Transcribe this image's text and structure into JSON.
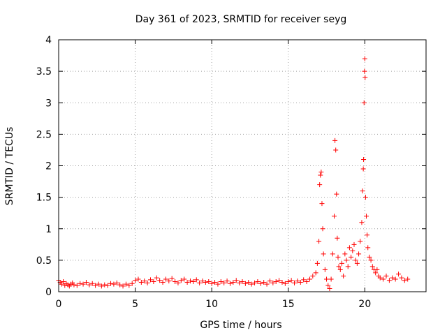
{
  "chart_data": {
    "type": "scatter",
    "title": "Day 361 of 2023, SRMTID for receiver seyg",
    "xlabel": "GPS time / hours",
    "ylabel": "SRMTID / TECUs",
    "xlim": [
      0,
      24
    ],
    "ylim": [
      0,
      4
    ],
    "xticks": [
      0,
      5,
      10,
      15,
      20
    ],
    "xtick_labels": [
      "0",
      "5",
      "10",
      "15",
      "20"
    ],
    "yticks": [
      0,
      0.5,
      1,
      1.5,
      2,
      2.5,
      3,
      3.5,
      4
    ],
    "ytick_labels": [
      "0",
      "0.5",
      "1",
      "1.5",
      "2",
      "2.5",
      "3",
      "3.5",
      "4"
    ],
    "grid": true,
    "legend": "none",
    "marker": "+",
    "color": "#ff0000",
    "series": [
      {
        "name": "SRMTID",
        "x": [
          0.0,
          0.1,
          0.2,
          0.3,
          0.4,
          0.5,
          0.6,
          0.7,
          0.8,
          0.9,
          1.0,
          1.2,
          1.4,
          1.6,
          1.8,
          2.0,
          2.2,
          2.4,
          2.6,
          2.8,
          3.0,
          3.2,
          3.4,
          3.6,
          3.8,
          4.0,
          4.2,
          4.4,
          4.6,
          4.8,
          5.0,
          5.2,
          5.4,
          5.6,
          5.8,
          6.0,
          6.2,
          6.4,
          6.6,
          6.8,
          7.0,
          7.2,
          7.4,
          7.6,
          7.8,
          8.0,
          8.2,
          8.4,
          8.6,
          8.8,
          9.0,
          9.2,
          9.4,
          9.6,
          9.8,
          10.0,
          10.2,
          10.4,
          10.6,
          10.8,
          11.0,
          11.2,
          11.4,
          11.6,
          11.8,
          12.0,
          12.2,
          12.4,
          12.6,
          12.8,
          13.0,
          13.2,
          13.4,
          13.6,
          13.8,
          14.0,
          14.2,
          14.4,
          14.6,
          14.8,
          15.0,
          15.2,
          15.4,
          15.6,
          15.8,
          16.0,
          16.2,
          16.4,
          16.6,
          16.8,
          16.9,
          17.0,
          17.05,
          17.1,
          17.15,
          17.2,
          17.25,
          17.3,
          17.4,
          17.5,
          17.6,
          17.7,
          17.8,
          17.9,
          18.0,
          18.05,
          18.1,
          18.15,
          18.2,
          18.25,
          18.3,
          18.4,
          18.5,
          18.6,
          18.7,
          18.8,
          18.9,
          19.0,
          19.1,
          19.2,
          19.3,
          19.4,
          19.5,
          19.6,
          19.7,
          19.8,
          19.85,
          19.9,
          19.92,
          19.95,
          19.98,
          20.0,
          20.02,
          20.05,
          20.1,
          20.15,
          20.2,
          20.3,
          20.4,
          20.5,
          20.6,
          20.7,
          20.8,
          20.9,
          21.0,
          21.2,
          21.4,
          21.6,
          21.8,
          22.0,
          22.2,
          22.4,
          22.6,
          22.8
        ],
        "y": [
          0.18,
          0.15,
          0.12,
          0.16,
          0.1,
          0.13,
          0.11,
          0.09,
          0.12,
          0.14,
          0.11,
          0.1,
          0.13,
          0.12,
          0.15,
          0.11,
          0.13,
          0.1,
          0.12,
          0.09,
          0.11,
          0.1,
          0.13,
          0.12,
          0.14,
          0.11,
          0.09,
          0.12,
          0.1,
          0.13,
          0.18,
          0.2,
          0.15,
          0.17,
          0.14,
          0.19,
          0.16,
          0.22,
          0.18,
          0.15,
          0.2,
          0.17,
          0.21,
          0.16,
          0.14,
          0.18,
          0.2,
          0.15,
          0.17,
          0.16,
          0.19,
          0.14,
          0.17,
          0.15,
          0.16,
          0.13,
          0.15,
          0.12,
          0.16,
          0.14,
          0.17,
          0.13,
          0.15,
          0.18,
          0.14,
          0.16,
          0.13,
          0.15,
          0.12,
          0.14,
          0.16,
          0.13,
          0.15,
          0.12,
          0.17,
          0.14,
          0.16,
          0.18,
          0.15,
          0.13,
          0.16,
          0.18,
          0.14,
          0.17,
          0.15,
          0.19,
          0.16,
          0.2,
          0.25,
          0.3,
          0.45,
          0.8,
          1.7,
          1.85,
          1.9,
          1.4,
          1.0,
          0.6,
          0.35,
          0.2,
          0.1,
          0.05,
          0.2,
          0.6,
          1.2,
          2.4,
          2.25,
          1.55,
          0.85,
          0.55,
          0.4,
          0.35,
          0.45,
          0.25,
          0.6,
          0.5,
          0.4,
          0.7,
          0.55,
          0.65,
          0.75,
          0.5,
          0.45,
          0.6,
          0.8,
          1.1,
          1.6,
          1.95,
          2.1,
          3.0,
          3.5,
          3.7,
          3.4,
          1.5,
          1.2,
          0.9,
          0.7,
          0.55,
          0.5,
          0.4,
          0.35,
          0.3,
          0.35,
          0.25,
          0.22,
          0.2,
          0.25,
          0.18,
          0.22,
          0.2,
          0.28,
          0.22,
          0.18,
          0.2
        ]
      }
    ]
  }
}
